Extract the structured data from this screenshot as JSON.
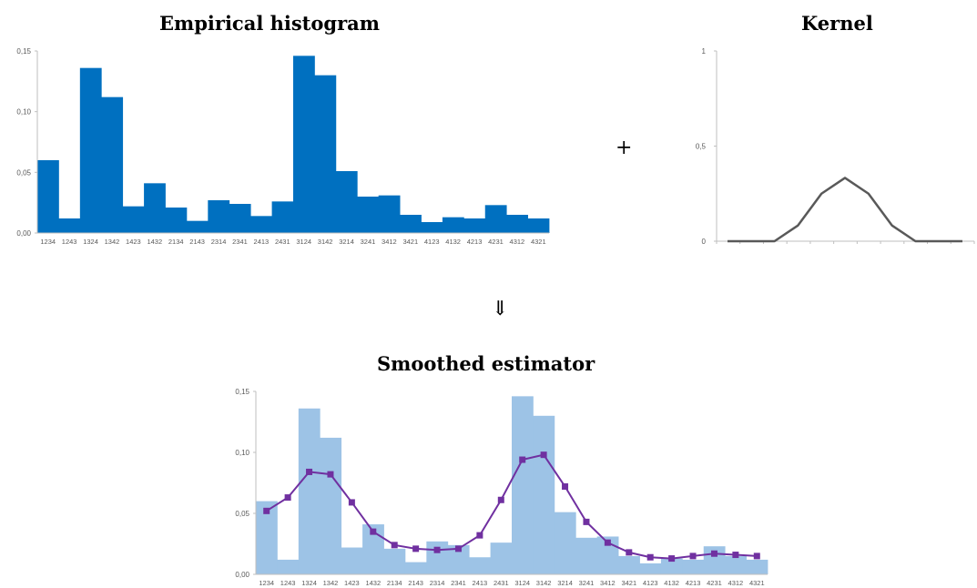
{
  "titles": {
    "histogram": "Empirical histogram",
    "kernel": "Kernel",
    "smoothed": "Smoothed estimator"
  },
  "symbols": {
    "plus": "+",
    "arrow": "⇓"
  },
  "colors": {
    "histogram_bar": "#0070C0",
    "smoothed_bar": "#9DC3E6",
    "smoothed_line": "#7030A0",
    "kernel_line": "#595959",
    "axis": "#BFBFBF",
    "text": "#595959"
  },
  "chart_data": [
    {
      "id": "histogram",
      "type": "bar",
      "title": "Empirical histogram",
      "categories": [
        "1234",
        "1243",
        "1324",
        "1342",
        "1423",
        "1432",
        "2134",
        "2143",
        "2314",
        "2341",
        "2413",
        "2431",
        "3124",
        "3142",
        "3214",
        "3241",
        "3412",
        "3421",
        "4123",
        "4132",
        "4213",
        "4231",
        "4312",
        "4321"
      ],
      "values": [
        0.06,
        0.012,
        0.136,
        0.112,
        0.022,
        0.041,
        0.021,
        0.01,
        0.027,
        0.024,
        0.014,
        0.026,
        0.146,
        0.13,
        0.051,
        0.03,
        0.031,
        0.015,
        0.009,
        0.013,
        0.012,
        0.023,
        0.015,
        0.012
      ],
      "ylim": [
        0,
        0.15
      ],
      "yticks": [
        "0,00",
        "0,05",
        "0,10",
        "0,15"
      ],
      "grid": false
    },
    {
      "id": "kernel",
      "type": "line",
      "title": "Kernel",
      "values": [
        0,
        0,
        0,
        0.083,
        0.25,
        0.333,
        0.25,
        0.083,
        0,
        0,
        0
      ],
      "ylim": [
        0,
        1
      ],
      "yticks": [
        "0",
        "0,5",
        "1"
      ],
      "grid": false
    },
    {
      "id": "smoothed",
      "type": "bar+line",
      "title": "Smoothed estimator",
      "categories": [
        "1234",
        "1243",
        "1324",
        "1342",
        "1423",
        "1432",
        "2134",
        "2143",
        "2314",
        "2341",
        "2413",
        "2431",
        "3124",
        "3142",
        "3214",
        "3241",
        "3412",
        "3421",
        "4123",
        "4132",
        "4213",
        "4231",
        "4312",
        "4321"
      ],
      "series": [
        {
          "type": "bar",
          "values": [
            0.06,
            0.012,
            0.136,
            0.112,
            0.022,
            0.041,
            0.021,
            0.01,
            0.027,
            0.024,
            0.014,
            0.026,
            0.146,
            0.13,
            0.051,
            0.03,
            0.031,
            0.015,
            0.009,
            0.013,
            0.012,
            0.023,
            0.015,
            0.012
          ]
        },
        {
          "type": "line",
          "values": [
            0.052,
            0.063,
            0.084,
            0.082,
            0.059,
            0.035,
            0.024,
            0.021,
            0.02,
            0.021,
            0.032,
            0.061,
            0.094,
            0.098,
            0.072,
            0.043,
            0.026,
            0.018,
            0.014,
            0.013,
            0.015,
            0.017,
            0.016,
            0.015
          ]
        }
      ],
      "ylim": [
        0,
        0.15
      ],
      "yticks": [
        "0,00",
        "0,05",
        "0,10",
        "0,15"
      ],
      "grid": false
    }
  ]
}
